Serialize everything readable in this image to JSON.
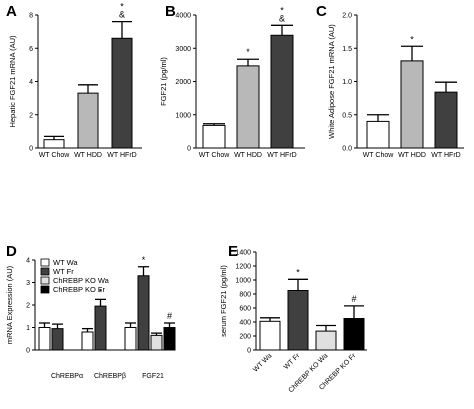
{
  "chart_data": [
    {
      "panel": "A",
      "type": "bar",
      "ylabel": "Hepatic FGF21 mRNA (AU)",
      "ylim": [
        0,
        8
      ],
      "yticks": [
        0,
        2,
        4,
        6,
        8
      ],
      "categories": [
        "WT Chow",
        "WT HDD",
        "WT HFrD"
      ],
      "values": [
        0.5,
        3.3,
        6.6
      ],
      "errors": [
        0.2,
        0.5,
        1.0
      ],
      "colors": [
        "#ffffff",
        "#b8b8b8",
        "#404040"
      ],
      "annotations": [
        "",
        "",
        "*\n&"
      ]
    },
    {
      "panel": "B",
      "type": "bar",
      "ylabel": "FGF21 (pg/ml)",
      "ylim": [
        0,
        4000
      ],
      "yticks": [
        0,
        1000,
        2000,
        3000,
        4000
      ],
      "categories": [
        "WT Chow",
        "WT HDD",
        "WT HFrD"
      ],
      "values": [
        680,
        2470,
        3390
      ],
      "errors": [
        50,
        200,
        300
      ],
      "colors": [
        "#ffffff",
        "#b8b8b8",
        "#404040"
      ],
      "annotations": [
        "",
        "*",
        "*\n&"
      ]
    },
    {
      "panel": "C",
      "type": "bar",
      "ylabel": "White Adipose FGF21 mRNA (AU)",
      "ylim": [
        0,
        2.0
      ],
      "yticks": [
        0.0,
        0.5,
        1.0,
        1.5,
        2.0
      ],
      "categories": [
        "WT Chow",
        "WT HDD",
        "WT HFrD"
      ],
      "values": [
        0.4,
        1.31,
        0.84
      ],
      "errors": [
        0.1,
        0.22,
        0.15
      ],
      "colors": [
        "#ffffff",
        "#b8b8b8",
        "#404040"
      ],
      "annotations": [
        "",
        "*",
        ""
      ]
    },
    {
      "panel": "D",
      "type": "bar",
      "ylabel": "mRNA Expression (AU)",
      "ylim": [
        0,
        4
      ],
      "yticks": [
        0,
        1,
        2,
        3,
        4
      ],
      "categories": [
        "ChREBPα",
        "ChREBPβ",
        "FGF21"
      ],
      "series": [
        {
          "name": "WT Wa",
          "color": "#ffffff",
          "values": [
            1.0,
            0.8,
            1.0
          ],
          "errors": [
            0.2,
            0.15,
            0.2
          ],
          "annotations": [
            "",
            "",
            ""
          ]
        },
        {
          "name": "WT Fr",
          "color": "#404040",
          "values": [
            0.95,
            1.95,
            3.3
          ],
          "errors": [
            0.2,
            0.3,
            0.4
          ],
          "annotations": [
            "",
            "*",
            "*"
          ]
        },
        {
          "name": "ChREBP KO Wa",
          "color": "#e0e0e0",
          "values": [
            0.0,
            0.0,
            0.65
          ],
          "errors": [
            0.0,
            0.0,
            0.1
          ],
          "annotations": [
            "",
            "",
            ""
          ]
        },
        {
          "name": "ChREBP KO Fr",
          "color": "#000000",
          "values": [
            0.0,
            0.0,
            1.0
          ],
          "errors": [
            0.0,
            0.0,
            0.2
          ],
          "annotations": [
            "",
            "",
            "#"
          ]
        }
      ],
      "legend": "top-left"
    },
    {
      "panel": "E",
      "type": "bar",
      "ylabel": "serum FGF21 (pg/ml)",
      "ylim": [
        0,
        1400
      ],
      "yticks": [
        0,
        200,
        400,
        600,
        800,
        1000,
        1200,
        1400
      ],
      "categories": [
        "WT Wa",
        "WT Fr",
        "ChREBP KO Wa",
        "ChREBP KO Fr"
      ],
      "values": [
        410,
        850,
        270,
        450
      ],
      "errors": [
        50,
        160,
        80,
        180
      ],
      "colors": [
        "#ffffff",
        "#404040",
        "#e0e0e0",
        "#000000"
      ],
      "annotations": [
        "",
        "*",
        "",
        "#"
      ]
    }
  ]
}
